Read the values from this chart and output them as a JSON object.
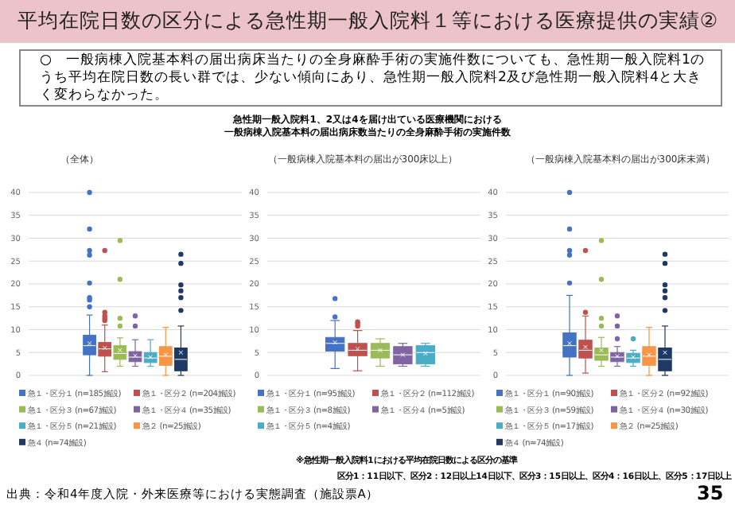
{
  "chart_data": [
    {
      "type": "other",
      "title": "平均在院日数の区分による急性期一般入院料１等における医療提供の実績②",
      "annotations": [
        "○　一般病棟入院基本料の届出病床当たりの全身麻酔手術の実施件数についても、急性期一般入院料1のうち平均在院日数の長い群では、少ない傾向にあり、急性期一般入院料2及び急性期一般入院料4と大きく変わらなかった。",
        "急性期一般入院料1、2又は4を届け出ている医療機関における",
        "一般病棟入院基本料の届出病床数当たりの全身麻酔手術の実施件数",
        "※急性期一般入院料1における平均在院日数による区分の基準",
        "区分1：11日以下、区分2：12日以上14日以下、区分3：15日以上、区分4：16日以上、区分5：17日以上",
        "出典：令和4年度入院・外来医療等における実態調査（施設票A）",
        "35"
      ]
    },
    {
      "type": "box",
      "title": "（全体）",
      "categories": [
        null
      ],
      "ylim": [
        0,
        40
      ],
      "yticks": [
        0,
        5,
        10,
        15,
        20,
        25,
        30,
        35,
        40
      ],
      "grid": "y",
      "legend": "bottom",
      "tick_labels": "y",
      "series": [
        {
          "name": "急１・区分１ (n=185施設)",
          "color": "#4472c4",
          "boxes": [
            {
              "low": 0,
              "q1": 4.5,
              "median": 6.5,
              "q3": 8.8,
              "high": 13.2,
              "mean": 7,
              "outliers": [
                15,
                16.5,
                17,
                20.2,
                26.3,
                27.3,
                32,
                40
              ]
            }
          ]
        },
        {
          "name": "急１・区分２ (n=204施設)",
          "color": "#c0504d",
          "boxes": [
            {
              "low": 0.8,
              "q1": 4.2,
              "median": 5.8,
              "q3": 7.2,
              "high": 11,
              "mean": 6,
              "outliers": [
                12,
                12.5,
                13,
                13.8,
                27.3
              ]
            }
          ]
        },
        {
          "name": "急１・区分３ (n=67施設)",
          "color": "#9bbb59",
          "boxes": [
            {
              "low": 2,
              "q1": 3.5,
              "median": 4.8,
              "q3": 6.5,
              "high": 8.2,
              "mean": 5.5,
              "outliers": [
                10.8,
                12.5,
                21,
                29.5
              ]
            }
          ]
        },
        {
          "name": "急１・区分４ (n=35施設)",
          "color": "#8064a2",
          "boxes": [
            {
              "low": 2,
              "q1": 3,
              "median": 4,
              "q3": 5.2,
              "high": 7.8,
              "mean": 4.3,
              "outliers": [
                10.8,
                13
              ]
            }
          ]
        },
        {
          "name": "急１・区分５ (n=21施設)",
          "color": "#4bacc6",
          "boxes": [
            {
              "low": 2,
              "q1": 2.8,
              "median": 3.8,
              "q3": 5,
              "high": 7.8,
              "mean": 4
            }
          ]
        },
        {
          "name": "急２ (n=25施設)",
          "color": "#f79646",
          "boxes": [
            {
              "low": 0,
              "q1": 2.2,
              "median": 4.2,
              "q3": 6.3,
              "high": 10.5,
              "mean": 4.5
            }
          ]
        },
        {
          "name": "急４ (n=74施設)",
          "color": "#1f3864",
          "boxes": [
            {
              "low": 0,
              "q1": 1,
              "median": 3.5,
              "q3": 6,
              "high": 10.8,
              "mean": 5,
              "outliers": [
                14.2,
                17,
                18.5,
                19.8,
                24.5,
                26.5
              ]
            }
          ]
        }
      ]
    },
    {
      "type": "box",
      "title": "（一般病棟入院基本料の届出が300床以上）",
      "categories": [
        null
      ],
      "ylim": [
        0,
        40
      ],
      "yticks": [
        0,
        5,
        10,
        15,
        20,
        25,
        30,
        35,
        40
      ],
      "grid": "y",
      "legend": "bottom",
      "tick_labels": "y",
      "series": [
        {
          "name": "急１・区分１ (n=95施設)",
          "color": "#4472c4",
          "boxes": [
            {
              "low": 1.5,
              "q1": 5.3,
              "median": 7,
              "q3": 8.3,
              "high": 12,
              "mean": 7.2,
              "outliers": [
                12.8,
                16.8
              ]
            }
          ]
        },
        {
          "name": "急１・区分２ (n=112施設)",
          "color": "#c0504d",
          "boxes": [
            {
              "low": 1,
              "q1": 4.3,
              "median": 5.5,
              "q3": 7,
              "high": 9.8,
              "mean": 5.8,
              "outliers": [
                10.8,
                11.3,
                11.7
              ]
            }
          ]
        },
        {
          "name": "急１・区分３ (n=8施設)",
          "color": "#9bbb59",
          "boxes": [
            {
              "low": 2,
              "q1": 3.8,
              "median": 5.5,
              "q3": 7,
              "high": 8,
              "mean": 5.5
            }
          ]
        },
        {
          "name": "急１・区分４ (n=5施設)",
          "color": "#8064a2",
          "boxes": [
            {
              "low": 2,
              "q1": 2.5,
              "median": 4.5,
              "q3": 6.3,
              "high": 7,
              "mean": 4.5
            }
          ]
        },
        {
          "name": "急１・区分５ (n=4施設)",
          "color": "#4bacc6",
          "boxes": [
            {
              "low": 2,
              "q1": 2.5,
              "median": 5,
              "q3": 6.5,
              "high": 7,
              "mean": 4.8
            }
          ]
        }
      ]
    },
    {
      "type": "box",
      "title": "（一般病棟入院基本料の届出が300床未満）",
      "categories": [
        null
      ],
      "ylim": [
        0,
        40
      ],
      "yticks": [
        0,
        5,
        10,
        15,
        20,
        25,
        30,
        35,
        40
      ],
      "grid": "y",
      "legend": "bottom",
      "tick_labels": "y",
      "series": [
        {
          "name": "急１・区分１ (n=90施設)",
          "color": "#4472c4",
          "boxes": [
            {
              "low": 0,
              "q1": 4,
              "median": 6.5,
              "q3": 9.3,
              "high": 17.5,
              "mean": 7,
              "outliers": [
                20.2,
                26.3,
                27.3,
                32,
                40
              ]
            }
          ]
        },
        {
          "name": "急１・区分２ (n=92施設)",
          "color": "#c0504d",
          "boxes": [
            {
              "low": 0.5,
              "q1": 3.8,
              "median": 5.5,
              "q3": 7.7,
              "high": 13,
              "mean": 6.2,
              "outliers": [
                13.8,
                27.3
              ]
            }
          ]
        },
        {
          "name": "急１・区分３ (n=59施設)",
          "color": "#9bbb59",
          "boxes": [
            {
              "low": 2,
              "q1": 3.3,
              "median": 4.5,
              "q3": 6,
              "high": 8.3,
              "mean": 5.5,
              "outliers": [
                10.8,
                12.5,
                21,
                29.5
              ]
            }
          ]
        },
        {
          "name": "急１・区分４ (n=30施設)",
          "color": "#8064a2",
          "boxes": [
            {
              "low": 2,
              "q1": 3,
              "median": 4,
              "q3": 5,
              "high": 6.3,
              "mean": 4.2,
              "outliers": [
                8,
                10.8,
                13
              ]
            }
          ]
        },
        {
          "name": "急１・区分５ (n=17施設)",
          "color": "#4bacc6",
          "boxes": [
            {
              "low": 2,
              "q1": 2.8,
              "median": 3.8,
              "q3": 4.8,
              "high": 5.5,
              "mean": 4,
              "outliers": [
                8
              ]
            }
          ]
        },
        {
          "name": "急２ (n=25施設)",
          "color": "#f79646",
          "boxes": [
            {
              "low": 0,
              "q1": 2.2,
              "median": 4.2,
              "q3": 6.3,
              "high": 10.5,
              "mean": 4.5
            }
          ]
        },
        {
          "name": "急４ (n=74施設)",
          "color": "#1f3864",
          "boxes": [
            {
              "low": 0,
              "q1": 1,
              "median": 3.5,
              "q3": 6,
              "high": 10.8,
              "mean": 5,
              "outliers": [
                14.2,
                17,
                18.5,
                19.8,
                24.5,
                26.5
              ]
            }
          ]
        }
      ]
    }
  ]
}
